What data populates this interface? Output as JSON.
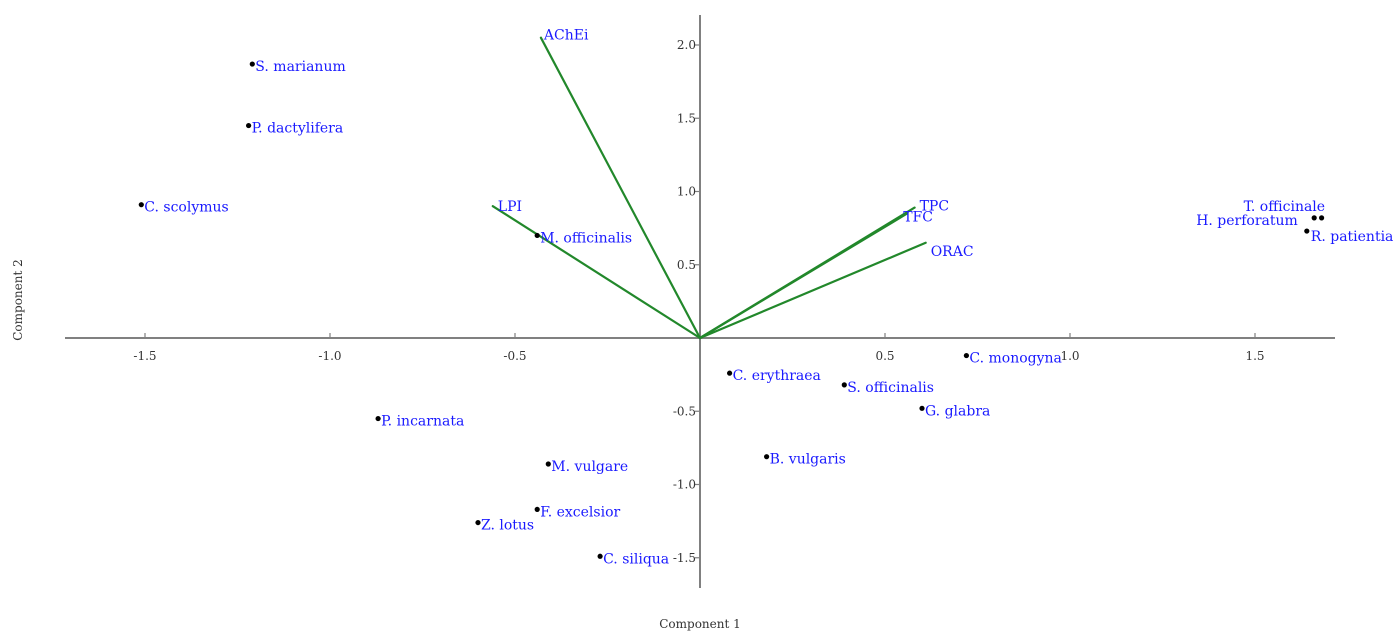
{
  "chart_data": {
    "type": "scatter",
    "subtype": "biplot",
    "xlabel": "Component 1",
    "ylabel": "Component 2",
    "xlim": [
      -1.72,
      1.72
    ],
    "ylim": [
      -1.69,
      2.2
    ],
    "grid": false,
    "x_ticks": [
      -1.5,
      -1.0,
      -0.5,
      0.5,
      1.0,
      1.5
    ],
    "x_tick_labels": [
      "-1.5",
      "-1.0",
      "-0.5",
      "0.5",
      "1.0",
      "1.5"
    ],
    "y_ticks": [
      2.0,
      1.5,
      1.0,
      0.5,
      -0.5,
      -1.0,
      -1.5
    ],
    "y_tick_labels": [
      "2.0",
      "1.5",
      "1.0",
      "0.5",
      "-0.5",
      "-1.0",
      "-1.5"
    ],
    "points": [
      {
        "label": "S. marianum",
        "x": -1.21,
        "y": 1.87
      },
      {
        "label": "P. dactylifera",
        "x": -1.22,
        "y": 1.45
      },
      {
        "label": "C. scolymus",
        "x": -1.51,
        "y": 0.91
      },
      {
        "label": "M. officinalis",
        "x": -0.44,
        "y": 0.7
      },
      {
        "label": "T. officinale",
        "x": 1.68,
        "y": 0.82
      },
      {
        "label": "H. perforatum",
        "x": 1.66,
        "y": 0.82
      },
      {
        "label": "R. patientia",
        "x": 1.64,
        "y": 0.73
      },
      {
        "label": "C. monogyna",
        "x": 0.72,
        "y": -0.12
      },
      {
        "label": "C. erythraea",
        "x": 0.08,
        "y": -0.24
      },
      {
        "label": "S. officinalis",
        "x": 0.39,
        "y": -0.32
      },
      {
        "label": "G. glabra",
        "x": 0.6,
        "y": -0.48
      },
      {
        "label": "P. incarnata",
        "x": -0.87,
        "y": -0.55
      },
      {
        "label": "B. vulgaris",
        "x": 0.18,
        "y": -0.81
      },
      {
        "label": "M. vulgare",
        "x": -0.41,
        "y": -0.86
      },
      {
        "label": "F. excelsior",
        "x": -0.44,
        "y": -1.17
      },
      {
        "label": "Z. lotus",
        "x": -0.6,
        "y": -1.26
      },
      {
        "label": "C. siliqua",
        "x": -0.27,
        "y": -1.49
      }
    ],
    "vectors": [
      {
        "label": "AChEi",
        "x": -0.43,
        "y": 2.05
      },
      {
        "label": "LPI",
        "x": -0.56,
        "y": 0.9
      },
      {
        "label": "TPC",
        "x": 0.58,
        "y": 0.89
      },
      {
        "label": "TFC",
        "x": 0.56,
        "y": 0.85
      },
      {
        "label": "ORAC",
        "x": 0.61,
        "y": 0.65
      }
    ]
  }
}
